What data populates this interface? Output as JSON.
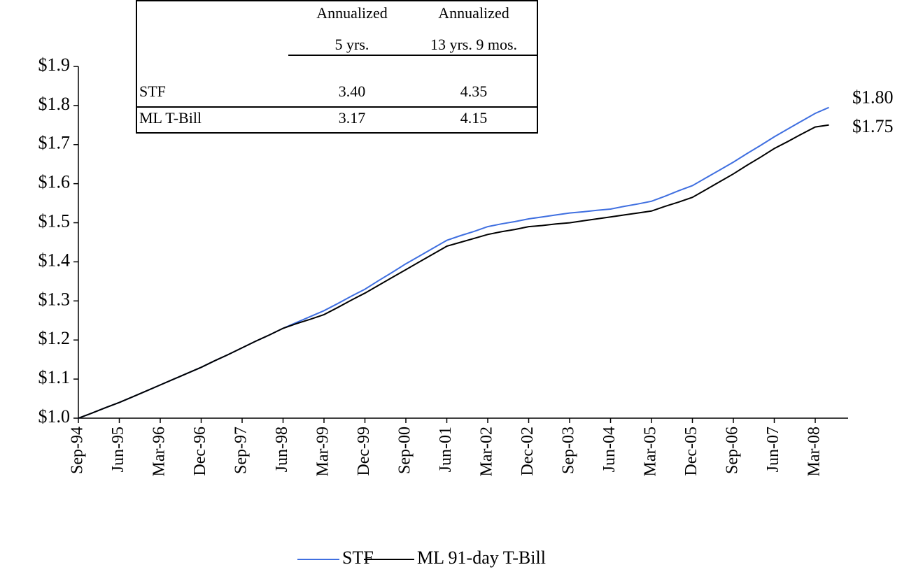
{
  "chart_data": {
    "type": "line",
    "categories": [
      "Sep-94",
      null,
      null,
      "Jun-95",
      null,
      null,
      "Mar-96",
      null,
      null,
      "Dec-96",
      null,
      null,
      "Sep-97",
      null,
      null,
      "Jun-98",
      null,
      null,
      "Mar-99",
      null,
      null,
      "Dec-99",
      null,
      null,
      "Sep-00",
      null,
      null,
      "Jun-01",
      null,
      null,
      "Mar-02",
      null,
      null,
      "Dec-02",
      null,
      null,
      "Sep-03",
      null,
      null,
      "Jun-04",
      null,
      null,
      "Mar-05",
      null,
      null,
      "Dec-05",
      null,
      null,
      "Sep-06",
      null,
      null,
      "Jun-07",
      null,
      null,
      "Mar-08",
      null
    ],
    "series": [
      {
        "name": "STF",
        "color": "#3f6fe0",
        "values": [
          1.0,
          1.013,
          1.027,
          1.04,
          1.055,
          1.07,
          1.085,
          1.1,
          1.115,
          1.13,
          1.147,
          1.163,
          1.18,
          1.197,
          1.213,
          1.23,
          1.245,
          1.26,
          1.275,
          1.293,
          1.312,
          1.33,
          1.352,
          1.373,
          1.395,
          1.415,
          1.435,
          1.455,
          1.467,
          1.478,
          1.49,
          1.497,
          1.503,
          1.51,
          1.515,
          1.52,
          1.525,
          1.528,
          1.532,
          1.535,
          1.542,
          1.548,
          1.555,
          1.568,
          1.582,
          1.595,
          1.615,
          1.635,
          1.655,
          1.677,
          1.698,
          1.72,
          1.74,
          1.76,
          1.78,
          1.795
        ],
        "value_labels": [
          null,
          null,
          null,
          null,
          null,
          null,
          null,
          null,
          null,
          null,
          null,
          null,
          null,
          null,
          null,
          null,
          null,
          null,
          null,
          null,
          null,
          null,
          null,
          null,
          null,
          null,
          null,
          null,
          null,
          null,
          null,
          null,
          null,
          null,
          null,
          null,
          null,
          null,
          null,
          null,
          null,
          null,
          null,
          null,
          null,
          null,
          null,
          null,
          null,
          null,
          null,
          null,
          null,
          null,
          null,
          "$1.80"
        ]
      },
      {
        "name": "ML 91-day T-Bill",
        "color": "#000000",
        "values": [
          1.0,
          1.013,
          1.027,
          1.04,
          1.055,
          1.07,
          1.085,
          1.1,
          1.115,
          1.13,
          1.147,
          1.163,
          1.18,
          1.197,
          1.213,
          1.23,
          1.242,
          1.253,
          1.265,
          1.283,
          1.302,
          1.32,
          1.34,
          1.36,
          1.38,
          1.4,
          1.42,
          1.44,
          1.45,
          1.46,
          1.47,
          1.477,
          1.483,
          1.49,
          1.493,
          1.497,
          1.5,
          1.505,
          1.51,
          1.515,
          1.52,
          1.525,
          1.53,
          1.542,
          1.553,
          1.565,
          1.585,
          1.605,
          1.625,
          1.647,
          1.668,
          1.69,
          1.708,
          1.727,
          1.745,
          1.75
        ],
        "value_labels": [
          null,
          null,
          null,
          null,
          null,
          null,
          null,
          null,
          null,
          null,
          null,
          null,
          null,
          null,
          null,
          null,
          null,
          null,
          null,
          null,
          null,
          null,
          null,
          null,
          null,
          null,
          null,
          null,
          null,
          null,
          null,
          null,
          null,
          null,
          null,
          null,
          null,
          null,
          null,
          null,
          null,
          null,
          null,
          null,
          null,
          null,
          null,
          null,
          null,
          null,
          null,
          null,
          null,
          null,
          null,
          "$1.75"
        ]
      }
    ],
    "ylim": [
      1.0,
      1.9
    ],
    "yticks": [
      {
        "value": 1.0,
        "label": "$1.0"
      },
      {
        "value": 1.1,
        "label": "$1.1"
      },
      {
        "value": 1.2,
        "label": "$1.2"
      },
      {
        "value": 1.3,
        "label": "$1.3"
      },
      {
        "value": 1.4,
        "label": "$1.4"
      },
      {
        "value": 1.5,
        "label": "$1.5"
      },
      {
        "value": 1.6,
        "label": "$1.6"
      },
      {
        "value": 1.7,
        "label": "$1.7"
      },
      {
        "value": 1.8,
        "label": "$1.8"
      },
      {
        "value": 1.9,
        "label": "$1.9"
      }
    ],
    "grid": false,
    "legend": "bottom"
  },
  "table": {
    "headers": [
      [
        "Annualized",
        "5 yrs."
      ],
      [
        "Annualized",
        "13 yrs. 9 mos."
      ]
    ],
    "rows": [
      [
        "STF",
        "3.40",
        "4.35"
      ],
      [
        "ML T-Bill",
        "3.17",
        "4.15"
      ]
    ]
  }
}
